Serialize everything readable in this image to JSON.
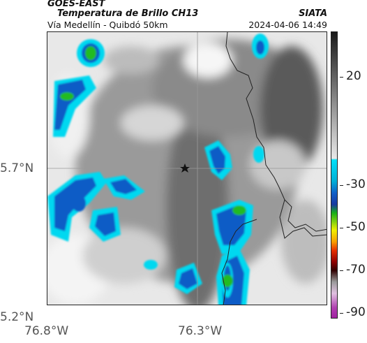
{
  "header": {
    "title_line1": "GOES-EAST",
    "title_line2": "Temperatura de Brillo CH13",
    "subtitle": "Vía Medellín - Quibdó 50km",
    "agency": "SIATA",
    "timestamp": "2024-04-06 14:49"
  },
  "axes": {
    "lat_labels": [
      "5.7°N",
      "5.2°N"
    ],
    "lon_labels": [
      "76.8°W",
      "76.3°W"
    ]
  },
  "colorbar": {
    "labels": [
      "20",
      "-30",
      "-50",
      "-70",
      "-90"
    ]
  },
  "colors": {
    "cold_cloud_cyan": "#00d8f0",
    "cold_cloud_blue": "#0a5cc6",
    "deep_convection_green": "#22bb22",
    "warm_gray": "#7a7a7a",
    "boundary_line": "#222222"
  },
  "map": {
    "marker_icon": "star-icon",
    "marker_name": "point-of-interest"
  }
}
